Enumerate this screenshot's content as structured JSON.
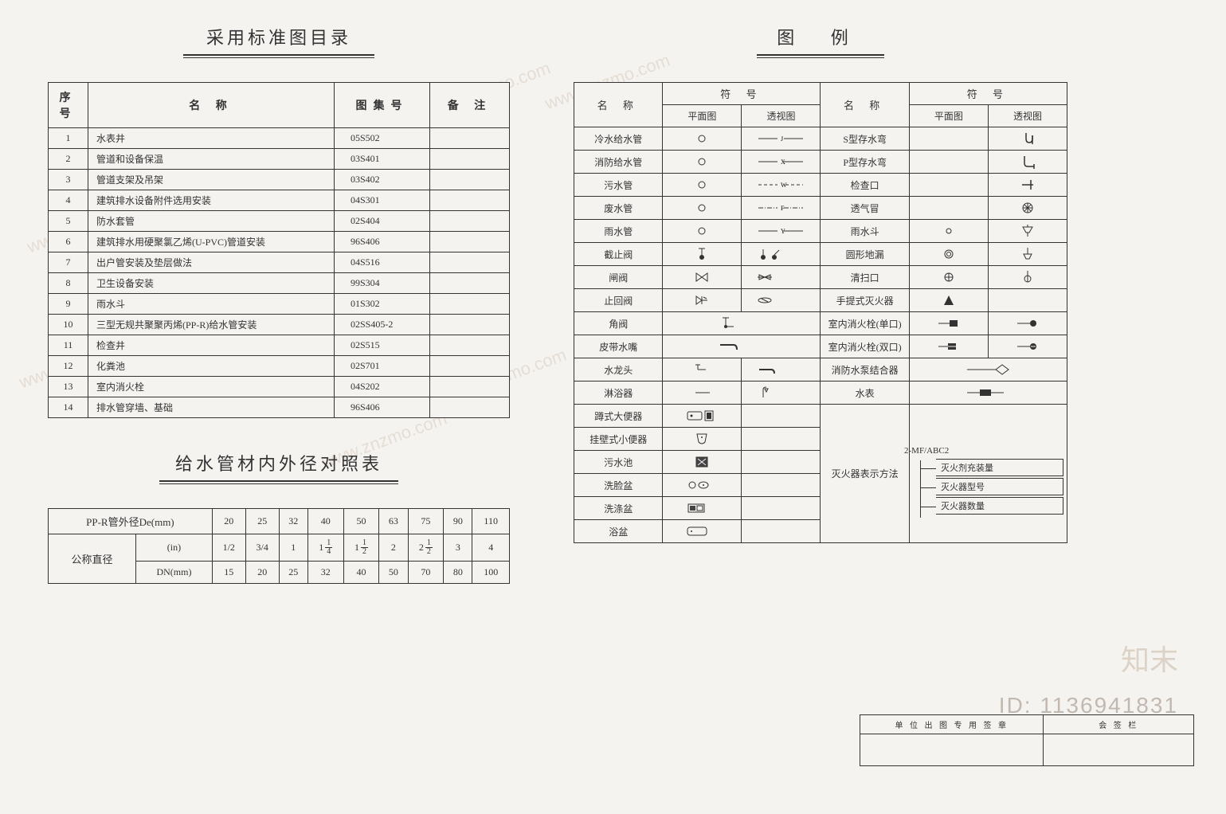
{
  "left": {
    "std_title": "采用标准图目录",
    "std_headers": {
      "no": "序 号",
      "name": "名    称",
      "code": "图集号",
      "remark": "备   注"
    },
    "std_rows": [
      {
        "no": "1",
        "name": "水表井",
        "code": "05S502"
      },
      {
        "no": "2",
        "name": "管道和设备保温",
        "code": "03S401"
      },
      {
        "no": "3",
        "name": "管道支架及吊架",
        "code": "03S402"
      },
      {
        "no": "4",
        "name": "建筑排水设备附件选用安装",
        "code": "04S301"
      },
      {
        "no": "5",
        "name": "防水套管",
        "code": "02S404"
      },
      {
        "no": "6",
        "name": "建筑排水用硬聚氯乙烯(U-PVC)管道安装",
        "code": "96S406"
      },
      {
        "no": "7",
        "name": "出户管安装及垫层做法",
        "code": "04S516"
      },
      {
        "no": "8",
        "name": "卫生设备安装",
        "code": "99S304"
      },
      {
        "no": "9",
        "name": "雨水斗",
        "code": "01S302"
      },
      {
        "no": "10",
        "name": "三型无规共聚聚丙烯(PP-R)给水管安装",
        "code": "02SS405-2"
      },
      {
        "no": "11",
        "name": "检查井",
        "code": "02S515"
      },
      {
        "no": "12",
        "name": "化粪池",
        "code": "02S701"
      },
      {
        "no": "13",
        "name": "室内消火栓",
        "code": "04S202"
      },
      {
        "no": "14",
        "name": "排水管穿墙、基础",
        "code": "96S406"
      }
    ],
    "dia_title": "给水管材内外径对照表",
    "dia": {
      "row1_label": "PP-R管外径De(mm)",
      "row1_vals": [
        "20",
        "25",
        "32",
        "40",
        "50",
        "63",
        "75",
        "90",
        "110"
      ],
      "row23_label": "公称直径",
      "row2_unit": "(in)",
      "row2_vals_plain": [
        "1/2",
        "3/4",
        "1"
      ],
      "row2_vals_frac": [
        {
          "w": "1",
          "n": "1",
          "d": "4"
        },
        {
          "w": "1",
          "n": "1",
          "d": "2"
        },
        {
          "w": "",
          "n": "",
          "d": "",
          "plain": "2"
        },
        {
          "w": "2",
          "n": "1",
          "d": "2"
        },
        {
          "w": "",
          "n": "",
          "d": "",
          "plain": "3"
        },
        {
          "w": "",
          "n": "",
          "d": "",
          "plain": "4"
        }
      ],
      "row3_unit": "DN(mm)",
      "row3_vals": [
        "15",
        "20",
        "25",
        "32",
        "40",
        "50",
        "70",
        "80",
        "100"
      ]
    }
  },
  "right": {
    "legend_title": "图   例",
    "hdr": {
      "name": "名  称",
      "sym": "符   号",
      "plan": "平面图",
      "persp": "透视图"
    },
    "left_rows": [
      {
        "name": "冷水给水管",
        "plan": "circle",
        "persp": "line-j"
      },
      {
        "name": "消防给水管",
        "plan": "circle",
        "persp": "line-x"
      },
      {
        "name": "污水管",
        "plan": "circle",
        "persp": "dash-w"
      },
      {
        "name": "废水管",
        "plan": "circle",
        "persp": "dashdot-f"
      },
      {
        "name": "雨水管",
        "plan": "circle",
        "persp": "line-y"
      },
      {
        "name": "截止阀",
        "plan": "valve-plan",
        "persp": "valve-persp"
      },
      {
        "name": "闸阀",
        "plan": "bowtie",
        "persp": "bowtie-open"
      },
      {
        "name": "止回阀",
        "plan": "check-plan",
        "persp": "check-persp"
      },
      {
        "name": "角阀",
        "span": true,
        "sym": "angle-valve"
      },
      {
        "name": "皮带水嘴",
        "span": true,
        "sym": "hose-bib"
      },
      {
        "name": "水龙头",
        "plan": "faucet-plan",
        "persp": "faucet-persp"
      },
      {
        "name": "淋浴器",
        "plan": "shower-plan",
        "persp": "shower-persp"
      },
      {
        "name": "蹲式大便器",
        "plan": "squat",
        "persp": ""
      },
      {
        "name": "挂壁式小便器",
        "plan": "urinal",
        "persp": ""
      },
      {
        "name": "污水池",
        "plan": "sink-x",
        "persp": ""
      },
      {
        "name": "洗脸盆",
        "plan": "basin",
        "persp": ""
      },
      {
        "name": "洗涤盆",
        "plan": "washtub",
        "persp": ""
      },
      {
        "name": "浴盆",
        "plan": "bathtub",
        "persp": ""
      }
    ],
    "right_rows": [
      {
        "name": "S型存水弯",
        "plan": "",
        "persp": "strap"
      },
      {
        "name": "P型存水弯",
        "plan": "",
        "persp": "ptrap"
      },
      {
        "name": "检查口",
        "plan": "",
        "persp": "cleanout-t"
      },
      {
        "name": "透气冒",
        "plan": "",
        "persp": "vent-cap"
      },
      {
        "name": "雨水斗",
        "plan": "circle-s",
        "persp": "rain-hopper"
      },
      {
        "name": "圆形地漏",
        "plan": "double-circle",
        "persp": "floor-drain-p"
      },
      {
        "name": "清扫口",
        "plan": "circle-plus",
        "persp": "cleanout-p"
      },
      {
        "name": "手提式灭火器",
        "plan": "triangle",
        "persp": ""
      },
      {
        "name": "室内消火栓(单口)",
        "plan": "hydrant-1-plan",
        "persp": "hydrant-1-persp"
      },
      {
        "name": "室内消火栓(双口)",
        "plan": "hydrant-2-plan",
        "persp": "hydrant-2-persp"
      },
      {
        "name": "消防水泵结合器",
        "span": true,
        "sym": "siamese"
      },
      {
        "name": "水表",
        "span": true,
        "sym": "meter"
      }
    ],
    "ext": {
      "label": "灭火器表示方法",
      "code": "2-MF/ABC2",
      "l1": "灭火剂充装量",
      "l2": "灭火器型号",
      "l3": "灭火器数量"
    }
  },
  "titlebox": {
    "l": "单 位 出 图 专 用 签 章",
    "r": "会 签 栏"
  },
  "watermarks": {
    "text": "www.znzmo.com",
    "logo": "知末",
    "id": "ID: 1136941831"
  },
  "colors": {
    "bg": "#f5f3f0",
    "line": "#333333"
  }
}
